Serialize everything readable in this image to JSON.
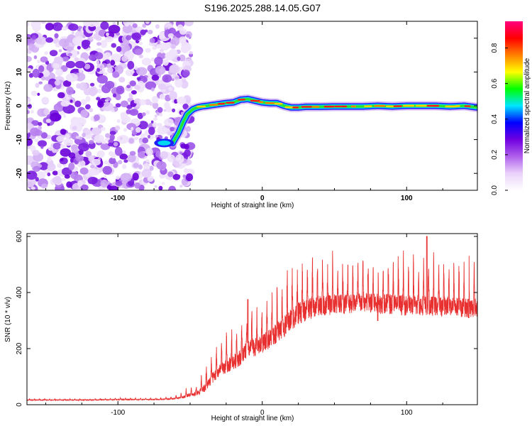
{
  "title": "S196.2025.288.14.05.G07",
  "chart_data": [
    {
      "type": "heatmap",
      "name": "spectrogram",
      "xlabel": "Height of straight line (km)",
      "ylabel": "Frequency (Hz)",
      "xlim": [
        -163,
        149
      ],
      "ylim": [
        -25,
        25
      ],
      "xticks": [
        -100,
        0,
        100
      ],
      "xtick_labels": [
        "-100",
        "0",
        "100"
      ],
      "yticks": [
        -20,
        -10,
        0,
        10,
        20
      ],
      "ytick_labels": [
        "-20",
        "-10",
        "0",
        "10",
        "20"
      ],
      "ridge": {
        "x": [
          -62,
          -58,
          -55,
          -52,
          -48,
          -45,
          -42,
          -38,
          -35,
          -30,
          -25,
          -20,
          -15,
          -10,
          -5,
          0,
          5,
          10,
          15,
          20,
          25,
          30,
          40,
          50,
          60,
          70,
          80,
          90,
          100,
          110,
          120,
          130,
          140,
          149
        ],
        "freq": [
          -11,
          -8,
          -5,
          -2.5,
          -1,
          -0.5,
          -0.2,
          0,
          0.2,
          0.5,
          0.8,
          1,
          1.8,
          2,
          1.5,
          1,
          0.8,
          0.8,
          0,
          -0.5,
          -0.5,
          -0.3,
          -0.3,
          -0.2,
          -0.2,
          -0.2,
          0,
          -0.2,
          0,
          0,
          0,
          -0.2,
          0,
          -0.5
        ]
      },
      "blob": {
        "x": -68,
        "freq": -11
      },
      "noise_region_x": [
        -163,
        -53
      ],
      "colorbar": {
        "label": "Normalized spectral amplitude",
        "range": [
          0,
          0.95
        ],
        "ticks": [
          0.0,
          0.2,
          0.4,
          0.6,
          0.8
        ],
        "tick_labels": [
          "0.0",
          "0.2",
          "0.4",
          "0.6",
          "0.8"
        ],
        "colors": [
          "#ffffff",
          "#ead2fa",
          "#b060ec",
          "#7000e0",
          "#0000ff",
          "#00e6ff",
          "#00ff00",
          "#ffff00",
          "#ff8000",
          "#ff0000",
          "#ff0080"
        ]
      }
    },
    {
      "type": "line",
      "name": "snr",
      "xlabel": "Height of straight line (km)",
      "ylabel": "SNR (10 * v/v)",
      "xlim": [
        -163,
        149
      ],
      "ylim": [
        0,
        610
      ],
      "xticks": [
        -100,
        0,
        100
      ],
      "xtick_labels": [
        "-100",
        "0",
        "100"
      ],
      "yticks": [
        0,
        200,
        400,
        600
      ],
      "ytick_labels": [
        "0",
        "200",
        "400",
        "600"
      ],
      "color": "#e83030",
      "x": [
        -163,
        -140,
        -120,
        -100,
        -80,
        -70,
        -62,
        -55,
        -50,
        -45,
        -40,
        -35,
        -30,
        -25,
        -20,
        -15,
        -10,
        -5,
        0,
        5,
        10,
        15,
        20,
        25,
        30,
        35,
        40,
        50,
        60,
        70,
        80,
        90,
        100,
        110,
        120,
        130,
        140,
        149
      ],
      "y": [
        18,
        18,
        18,
        20,
        20,
        21,
        24,
        33,
        45,
        50,
        80,
        120,
        150,
        170,
        190,
        210,
        240,
        250,
        260,
        285,
        310,
        330,
        360,
        380,
        390,
        400,
        405,
        410,
        415,
        415,
        410,
        410,
        405,
        405,
        400,
        400,
        395,
        395
      ],
      "spike_amplitude_y": [
        4,
        4,
        4,
        5,
        5,
        6,
        8,
        18,
        25,
        30,
        60,
        80,
        90,
        100,
        110,
        115,
        120,
        130,
        130,
        140,
        150,
        155,
        160,
        160,
        155,
        150,
        150,
        150,
        150,
        145,
        145,
        145,
        145,
        145,
        140,
        140,
        140,
        140
      ],
      "spike_period_x": 3.5,
      "peaks": [
        {
          "x": 114,
          "y": 600
        },
        {
          "x": -10,
          "y": 375
        }
      ],
      "dips": [
        {
          "x": 80,
          "y": 300
        },
        {
          "x": 143,
          "y": 310
        }
      ]
    }
  ]
}
